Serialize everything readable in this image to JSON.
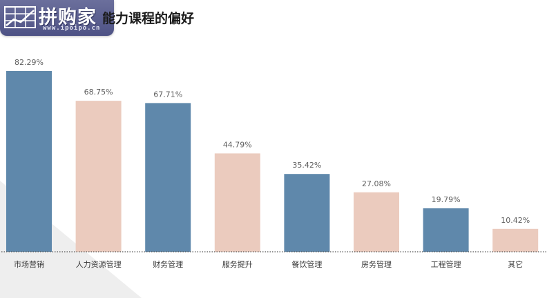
{
  "title": "能力课程的偏好",
  "logo": {
    "name": "拼购家",
    "url": "www.ipoipo.cn"
  },
  "chart_data": {
    "type": "bar",
    "categories": [
      "市场营销",
      "人力资源管理",
      "财务管理",
      "服务提升",
      "餐饮管理",
      "房务管理",
      "工程管理",
      "其它"
    ],
    "values": [
      82.29,
      68.75,
      67.71,
      44.79,
      35.42,
      27.08,
      19.79,
      10.42
    ],
    "data_labels": [
      "82.29%",
      "68.75%",
      "67.71%",
      "44.79%",
      "35.42%",
      "27.08%",
      "19.79%",
      "10.42%"
    ],
    "colors": [
      "#5f88ab",
      "#ebcbbe",
      "#5f88ab",
      "#ebcbbe",
      "#5f88ab",
      "#ebcbbe",
      "#5f88ab",
      "#ebcbbe"
    ],
    "unit": "%",
    "ylim": [
      0,
      100
    ],
    "grid": false,
    "legend": "none",
    "baseline_style": "dotted"
  },
  "colors": {
    "blue": "#5f88ab",
    "peach": "#ebcbbe",
    "logo_bg": "#5a5e8f"
  }
}
